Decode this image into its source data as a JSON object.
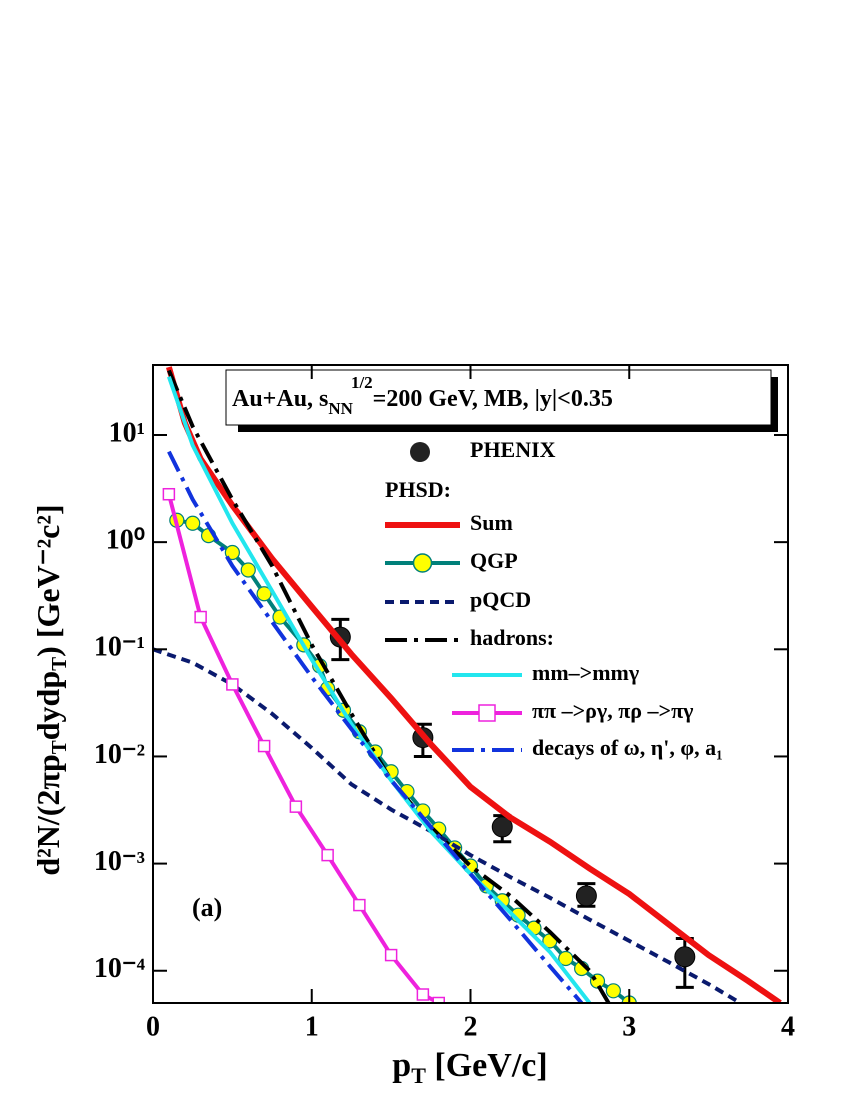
{
  "chart_data": {
    "type": "line",
    "annotation": [
      "Au+Au, s",
      "NN",
      "1/2",
      "=200 GeV, MB, |y|<0.35"
    ],
    "panel_label": "(a)",
    "legend_header": "PHSD:",
    "x_label": [
      "p",
      "T",
      " [GeV/c]"
    ],
    "y_label": [
      "d²N/(2πp",
      "T",
      "dydp",
      "T",
      ")  [GeV⁻²c²]"
    ],
    "xlim": [
      0,
      4
    ],
    "xticks": [
      0,
      1,
      2,
      3,
      4
    ],
    "ylim": [
      5e-05,
      45
    ],
    "log_y": true,
    "yticks": [
      {
        "value": 10,
        "label": "10¹"
      },
      {
        "value": 1,
        "label": "10⁰"
      },
      {
        "value": 0.1,
        "label": "10⁻¹"
      },
      {
        "value": 0.01,
        "label": "10⁻²"
      },
      {
        "value": 0.001,
        "label": "10⁻³"
      },
      {
        "value": 0.0001,
        "label": "10⁻⁴"
      }
    ],
    "series": [
      {
        "name": "PHENIX",
        "style": "points",
        "color": "#000000",
        "x": [
          1.18,
          1.7,
          2.2,
          2.73,
          3.35
        ],
        "values": [
          0.13,
          0.015,
          0.0022,
          0.0005,
          0.000135
        ],
        "y_low": [
          0.08,
          0.01,
          0.0016,
          0.0004,
          7e-05
        ],
        "y_high": [
          0.19,
          0.02,
          0.0028,
          0.00065,
          0.0002
        ]
      },
      {
        "name": "Sum",
        "style": "solid",
        "color": "#ee1111",
        "x": [
          0.1,
          0.2,
          0.3,
          0.5,
          0.75,
          1.0,
          1.25,
          1.5,
          1.75,
          2.0,
          2.25,
          2.5,
          2.75,
          3.0,
          3.25,
          3.5,
          3.75,
          3.95
        ],
        "values": [
          43,
          13,
          6,
          2.2,
          0.7,
          0.25,
          0.09,
          0.035,
          0.013,
          0.0052,
          0.0027,
          0.0016,
          0.0009,
          0.00052,
          0.00027,
          0.00014,
          8e-05,
          5e-05
        ]
      },
      {
        "name": "QGP",
        "style": "circles",
        "color": "#00807a",
        "marker_color": "#ffff00",
        "x": [
          0.15,
          0.25,
          0.35,
          0.5,
          0.6,
          0.7,
          0.8,
          0.95,
          1.05,
          1.1,
          1.2,
          1.3,
          1.4,
          1.5,
          1.6,
          1.7,
          1.8,
          1.9,
          2.0,
          2.1,
          2.2,
          2.3,
          2.4,
          2.5,
          2.6,
          2.7,
          2.8,
          2.9,
          3.0
        ],
        "values": [
          1.6,
          1.5,
          1.15,
          0.8,
          0.55,
          0.33,
          0.2,
          0.11,
          0.07,
          0.043,
          0.027,
          0.017,
          0.011,
          0.0072,
          0.0047,
          0.0031,
          0.0021,
          0.0014,
          0.00095,
          0.00062,
          0.00045,
          0.00033,
          0.00025,
          0.00019,
          0.00013,
          0.000105,
          8e-05,
          6.5e-05,
          5e-05
        ]
      },
      {
        "name": "pQCD",
        "style": "dash",
        "color": "#0a1a6e",
        "x": [
          0,
          0.25,
          0.5,
          0.75,
          1.0,
          1.25,
          1.5,
          1.75,
          2.0,
          2.25,
          2.5,
          2.75,
          3.0,
          3.25,
          3.5,
          3.7
        ],
        "values": [
          0.1,
          0.075,
          0.047,
          0.025,
          0.012,
          0.0055,
          0.0032,
          0.002,
          0.0012,
          0.00075,
          0.00048,
          0.0003,
          0.00019,
          0.00012,
          7.5e-05,
          5e-05
        ]
      },
      {
        "name": "hadrons:",
        "style": "dashdot",
        "color": "#000000",
        "x": [
          0.1,
          0.25,
          0.5,
          0.75,
          1.0,
          1.25,
          1.5,
          1.75,
          2.0,
          2.25,
          2.5,
          2.75,
          2.87
        ],
        "values": [
          40,
          12,
          2.5,
          0.6,
          0.11,
          0.025,
          0.006,
          0.0022,
          0.00095,
          0.0005,
          0.00023,
          0.0001,
          5e-05
        ]
      },
      {
        "name": "mm–>mmγ",
        "style": "solid",
        "color": "#22e6ee",
        "indent": true,
        "x": [
          0.1,
          0.25,
          0.5,
          0.75,
          1.0,
          1.25,
          1.5,
          1.75,
          2.0,
          2.25,
          2.5,
          2.75
        ],
        "values": [
          35,
          8,
          1.5,
          0.35,
          0.08,
          0.02,
          0.006,
          0.002,
          0.0008,
          0.00035,
          0.00015,
          5e-05
        ]
      },
      {
        "name": "ππ –>ργ, πρ –>πγ",
        "style": "squares",
        "color": "#ee22dd",
        "indent": true,
        "x": [
          0.1,
          0.3,
          0.5,
          0.7,
          0.9,
          1.1,
          1.3,
          1.5,
          1.7,
          1.8
        ],
        "values": [
          2.8,
          0.2,
          0.047,
          0.0125,
          0.0034,
          0.0012,
          0.00041,
          0.00014,
          6e-05,
          5e-05
        ]
      },
      {
        "name": "decays of ω, η', φ, a₁",
        "style": "dashdot",
        "color": "#1133dd",
        "indent": true,
        "x": [
          0.1,
          0.25,
          0.5,
          0.75,
          1.0,
          1.25,
          1.5,
          1.75,
          2.0,
          2.25,
          2.5,
          2.7
        ],
        "values": [
          7,
          2.5,
          0.6,
          0.18,
          0.055,
          0.018,
          0.006,
          0.0022,
          0.0008,
          0.0003,
          0.00011,
          5e-05
        ]
      }
    ]
  }
}
